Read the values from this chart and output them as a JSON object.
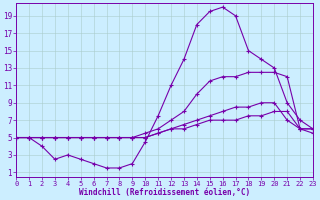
{
  "background_color": "#cceeff",
  "line_color": "#7700aa",
  "grid_color": "#aacccc",
  "xlabel": "Windchill (Refroidissement éolien,°C)",
  "xlim": [
    0,
    23
  ],
  "ylim": [
    0.5,
    20.5
  ],
  "xticks": [
    0,
    1,
    2,
    3,
    4,
    5,
    6,
    7,
    8,
    9,
    10,
    11,
    12,
    13,
    14,
    15,
    16,
    17,
    18,
    19,
    20,
    21,
    22,
    23
  ],
  "yticks": [
    1,
    3,
    5,
    7,
    9,
    11,
    13,
    15,
    17,
    19
  ],
  "lines": [
    {
      "x": [
        0,
        1,
        2,
        3,
        4,
        5,
        6,
        7,
        8,
        9,
        10,
        11,
        12,
        13,
        14,
        15,
        16,
        17,
        18,
        19,
        20,
        21,
        22,
        23
      ],
      "y": [
        5,
        5,
        5,
        5,
        5,
        5,
        5,
        5,
        5,
        5,
        5.5,
        6,
        7,
        8,
        10,
        11.5,
        12,
        12,
        12.5,
        12.5,
        12.5,
        12,
        6,
        6
      ]
    },
    {
      "x": [
        0,
        1,
        2,
        3,
        4,
        5,
        6,
        7,
        8,
        9,
        10,
        11,
        12,
        13,
        14,
        15,
        16,
        17,
        18,
        19,
        20,
        21,
        22,
        23
      ],
      "y": [
        5,
        5,
        4,
        2.5,
        3,
        2.5,
        2,
        1.5,
        1.5,
        2,
        4.5,
        7.5,
        11,
        14,
        18,
        19.5,
        20,
        19,
        15,
        14,
        13,
        9,
        7,
        6
      ]
    },
    {
      "x": [
        0,
        1,
        2,
        3,
        4,
        5,
        6,
        7,
        8,
        9,
        10,
        11,
        12,
        13,
        14,
        15,
        16,
        17,
        18,
        19,
        20,
        21,
        22,
        23
      ],
      "y": [
        5,
        5,
        5,
        5,
        5,
        5,
        5,
        5,
        5,
        5,
        5,
        5.5,
        6,
        6.5,
        7,
        7.5,
        8,
        8.5,
        8.5,
        9,
        9,
        7,
        6,
        5.5
      ]
    },
    {
      "x": [
        0,
        1,
        2,
        3,
        4,
        5,
        6,
        7,
        8,
        9,
        10,
        11,
        12,
        13,
        14,
        15,
        16,
        17,
        18,
        19,
        20,
        21,
        22,
        23
      ],
      "y": [
        5,
        5,
        5,
        5,
        5,
        5,
        5,
        5,
        5,
        5,
        5,
        5.5,
        6,
        6,
        6.5,
        7,
        7,
        7,
        7.5,
        7.5,
        8,
        8,
        6,
        6
      ]
    }
  ],
  "marker": "+",
  "markersize": 3,
  "linewidth": 0.8,
  "tick_fontsize": 5,
  "xlabel_fontsize": 5.5
}
